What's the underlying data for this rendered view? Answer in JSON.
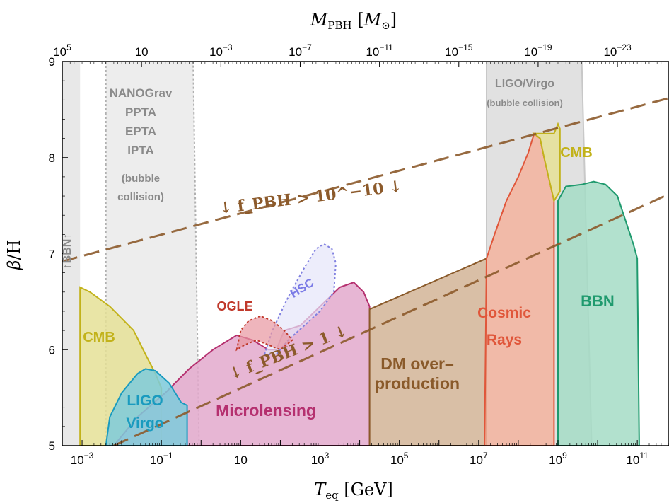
{
  "chart_data": {
    "type": "area",
    "title": "",
    "xlabel": "T_eq [GeV]",
    "ylabel": "β/H",
    "top_xlabel": "M_PBH [M_⊙]",
    "x_scale": "log10",
    "xlim": [
      -3.5,
      11.8
    ],
    "ylim": [
      5,
      9
    ],
    "x_ticks": [
      {
        "exp": -3,
        "label": "10^-3"
      },
      {
        "exp": -1,
        "label": "10^-1"
      },
      {
        "exp": 1,
        "label": "10"
      },
      {
        "exp": 3,
        "label": "10^3"
      },
      {
        "exp": 5,
        "label": "10^5"
      },
      {
        "exp": 7,
        "label": "10^7"
      },
      {
        "exp": 9,
        "label": "10^9"
      },
      {
        "exp": 11,
        "label": "10^11"
      }
    ],
    "y_ticks": [
      5,
      6,
      7,
      8,
      9
    ],
    "top_ticks": [
      {
        "at_log10_Teq": -3.5,
        "label": "10^5"
      },
      {
        "at_log10_Teq": -1.5,
        "label": "10"
      },
      {
        "at_log10_Teq": 0.5,
        "label": "10^-3"
      },
      {
        "at_log10_Teq": 2.5,
        "label": "10^-7"
      },
      {
        "at_log10_Teq": 4.5,
        "label": "10^-11"
      },
      {
        "at_log10_Teq": 6.5,
        "label": "10^-15"
      },
      {
        "at_log10_Teq": 8.5,
        "label": "10^-19"
      },
      {
        "at_log10_Teq": 10.5,
        "label": "10^-23"
      }
    ],
    "regions": [
      {
        "name": "LIGO/Virgo (bubble collision)",
        "fill": "#dcdcdc",
        "stroke": "#c8c8c8",
        "dash": false,
        "points": [
          [
            7.2,
            5
          ],
          [
            7.2,
            9
          ],
          [
            9.6,
            9
          ],
          [
            9.85,
            5
          ]
        ]
      },
      {
        "name": "NANOGrav PPTA EPTA IPTA (bubble collision)",
        "fill": "#e6e6e6",
        "stroke": "#b0b0b0",
        "dash": true,
        "points": [
          [
            -2.4,
            5
          ],
          [
            -2.4,
            9
          ],
          [
            -0.2,
            9
          ],
          [
            -0.05,
            5
          ]
        ]
      },
      {
        "name": "BBN (left band)",
        "fill": "#e4e4e4",
        "stroke": "none",
        "dash": false,
        "points": [
          [
            -3.5,
            5
          ],
          [
            -3.5,
            9
          ],
          [
            -3.05,
            9
          ],
          [
            -3.05,
            5
          ]
        ]
      },
      {
        "name": "CMB (left)",
        "fill": "#e5e096",
        "stroke": "#c2b21a",
        "dash": false,
        "points": [
          [
            -3.05,
            5
          ],
          [
            -3.05,
            6.65
          ],
          [
            -2.8,
            6.6
          ],
          [
            -2.3,
            6.45
          ],
          [
            -1.7,
            6.2
          ],
          [
            -1.4,
            5.95
          ],
          [
            -1.15,
            5.75
          ],
          [
            -1.0,
            5.6
          ],
          [
            -1.0,
            5
          ]
        ]
      },
      {
        "name": "Microlensing",
        "fill": "#e3a9cc",
        "stroke": "#b5306f",
        "dash": false,
        "points": [
          [
            -2.2,
            5
          ],
          [
            -1.6,
            5.3
          ],
          [
            -0.9,
            5.55
          ],
          [
            -0.3,
            5.8
          ],
          [
            0.3,
            6.0
          ],
          [
            0.9,
            6.15
          ],
          [
            1.3,
            6.1
          ],
          [
            1.7,
            6.0
          ],
          [
            1.9,
            6.0
          ],
          [
            2.1,
            6.2
          ],
          [
            2.5,
            6.25
          ],
          [
            3.0,
            6.45
          ],
          [
            3.5,
            6.65
          ],
          [
            3.85,
            6.7
          ],
          [
            4.1,
            6.6
          ],
          [
            4.25,
            6.45
          ],
          [
            4.25,
            5
          ]
        ]
      },
      {
        "name": "LIGO Virgo",
        "fill": "#7ecbdc",
        "stroke": "#1a9bbf",
        "dash": false,
        "points": [
          [
            -2.4,
            5
          ],
          [
            -2.3,
            5.3
          ],
          [
            -2.0,
            5.55
          ],
          [
            -1.6,
            5.75
          ],
          [
            -1.4,
            5.8
          ],
          [
            -1.15,
            5.78
          ],
          [
            -0.8,
            5.65
          ],
          [
            -0.5,
            5.45
          ],
          [
            -0.35,
            5.42
          ],
          [
            -0.35,
            5
          ]
        ]
      },
      {
        "name": "DM over-production",
        "fill": "#d2b496",
        "stroke": "#8a5a2a",
        "dash": false,
        "points": [
          [
            4.25,
            5
          ],
          [
            4.25,
            6.42
          ],
          [
            7.2,
            6.95
          ],
          [
            7.2,
            5
          ]
        ]
      },
      {
        "name": "Cosmic Rays",
        "fill": "#f3b39d",
        "stroke": "#e0563a",
        "dash": false,
        "points": [
          [
            7.15,
            5
          ],
          [
            7.2,
            6.95
          ],
          [
            7.4,
            7.2
          ],
          [
            7.7,
            7.55
          ],
          [
            8.0,
            7.8
          ],
          [
            8.25,
            8.05
          ],
          [
            8.4,
            8.25
          ],
          [
            8.55,
            8.2
          ],
          [
            8.65,
            8.0
          ],
          [
            8.9,
            7.55
          ],
          [
            8.9,
            5
          ]
        ]
      },
      {
        "name": "CMB (right)",
        "fill": "#e5e096",
        "stroke": "#c2b21a",
        "dash": false,
        "points": [
          [
            8.4,
            8.25
          ],
          [
            8.9,
            8.25
          ],
          [
            9.0,
            8.35
          ],
          [
            9.05,
            8.3
          ],
          [
            9.05,
            7.65
          ],
          [
            8.9,
            7.55
          ],
          [
            8.65,
            8.0
          ],
          [
            8.55,
            8.2
          ]
        ]
      },
      {
        "name": "BBN",
        "fill": "#a4dcc6",
        "stroke": "#1f9a6e",
        "dash": false,
        "points": [
          [
            9.0,
            5
          ],
          [
            9.0,
            7.55
          ],
          [
            9.2,
            7.7
          ],
          [
            9.6,
            7.72
          ],
          [
            9.9,
            7.75
          ],
          [
            10.2,
            7.72
          ],
          [
            10.5,
            7.6
          ],
          [
            10.7,
            7.35
          ],
          [
            10.9,
            7.1
          ],
          [
            11.0,
            6.95
          ],
          [
            11.05,
            5
          ]
        ]
      },
      {
        "name": "HSC",
        "fill": "#e6e6fa",
        "stroke": "#8080e0",
        "dash": true,
        "points": [
          [
            1.6,
            5.95
          ],
          [
            1.8,
            6.2
          ],
          [
            2.2,
            6.55
          ],
          [
            2.6,
            6.85
          ],
          [
            2.9,
            7.05
          ],
          [
            3.1,
            7.1
          ],
          [
            3.3,
            7.05
          ],
          [
            3.4,
            6.9
          ],
          [
            3.35,
            6.6
          ],
          [
            3.0,
            6.4
          ],
          [
            2.6,
            6.25
          ],
          [
            2.2,
            6.1
          ],
          [
            1.9,
            5.95
          ]
        ]
      },
      {
        "name": "OGLE",
        "fill": "#e8959f",
        "stroke": "#c0392b",
        "dash": true,
        "points": [
          [
            0.9,
            6.0
          ],
          [
            1.0,
            6.2
          ],
          [
            1.2,
            6.3
          ],
          [
            1.5,
            6.35
          ],
          [
            1.8,
            6.3
          ],
          [
            2.1,
            6.2
          ],
          [
            2.3,
            6.1
          ],
          [
            2.0,
            6.0
          ],
          [
            1.7,
            6.05
          ],
          [
            1.4,
            6.1
          ],
          [
            1.1,
            6.05
          ]
        ]
      }
    ],
    "lines": [
      {
        "name": "f_PBH > 10^-10",
        "color": "#8c5a2b",
        "points": [
          [
            -3.5,
            6.92
          ],
          [
            11.8,
            8.62
          ]
        ]
      },
      {
        "name": "f_PBH > 1",
        "color": "#8c5a2b",
        "points": [
          [
            -2.2,
            5
          ],
          [
            11.8,
            7.62
          ]
        ]
      }
    ],
    "annotations": {
      "nanograv": [
        "NANOGrav",
        "PPTA",
        "EPTA",
        "IPTA",
        "(bubble",
        "collision)"
      ],
      "ligo_virgo_bubble": [
        "LIGO/Virgo",
        "(bubble collision)"
      ],
      "cmb_right": "CMB",
      "cmb_left": "CMB",
      "bbn_right": "BBN",
      "bbn_left": "↑BBN↑",
      "ogle": "OGLE",
      "hsc": "HSC",
      "cosmic_rays": [
        "Cosmic",
        "Rays"
      ],
      "dm_overproduction": [
        "DM over–",
        "production"
      ],
      "microlensing": "Microlensing",
      "ligo_virgo": [
        "LIGO",
        "Virgo"
      ],
      "fpbh_high": "↓ f_PBH > 10^−10 ↓",
      "fpbh_low": "↓ f_PBH > 1 ↓"
    },
    "colors": {
      "cmb": "#c2b21a",
      "bbn": "#1f9a6e",
      "ogle": "#c0392b",
      "hsc": "#7a7ae6",
      "cosmic_rays": "#e0563a",
      "dm": "#8a5a2a",
      "microlensing": "#b5306f",
      "ligo": "#1a9bbf",
      "grey_text": "#8a8a8a",
      "fpbh_line": "#8c5a2b"
    }
  }
}
